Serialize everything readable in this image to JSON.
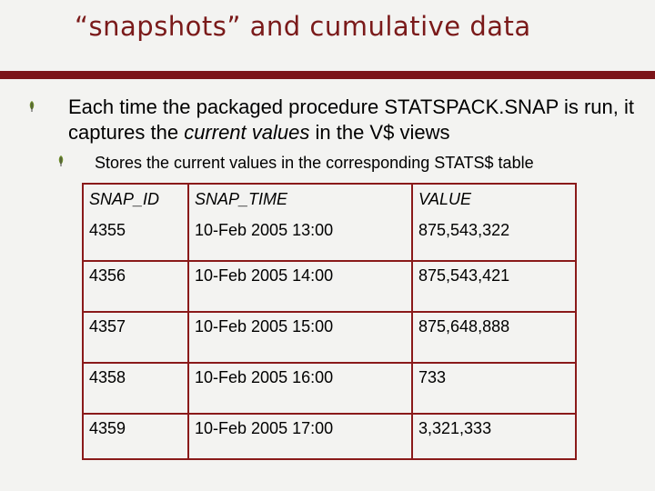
{
  "slide": {
    "title": "“snapshots” and cumulative data",
    "bullet1": {
      "before": "Each time the packaged procedure STATSPACK.SNAP is run, it captures the ",
      "emphasis": "current values",
      "after": " in the V$ views"
    },
    "bullet2": "Stores the current values in the corresponding STATS$ table",
    "bullet_icon": "leaf-bullet-icon",
    "accent_color": "#7b1418"
  },
  "table": {
    "headers": [
      "SNAP_ID",
      "SNAP_TIME",
      "VALUE"
    ],
    "rows": [
      [
        "4355",
        "10-Feb 2005 13:00",
        "875,543,322"
      ],
      [
        "4356",
        "10-Feb 2005 14:00",
        "875,543,421"
      ],
      [
        "4357",
        "10-Feb 2005 15:00",
        "875,648,888"
      ],
      [
        "4358",
        "10-Feb 2005 16:00",
        "733"
      ],
      [
        "4359",
        "10-Feb 2005 17:00",
        "3,321,333"
      ]
    ]
  }
}
